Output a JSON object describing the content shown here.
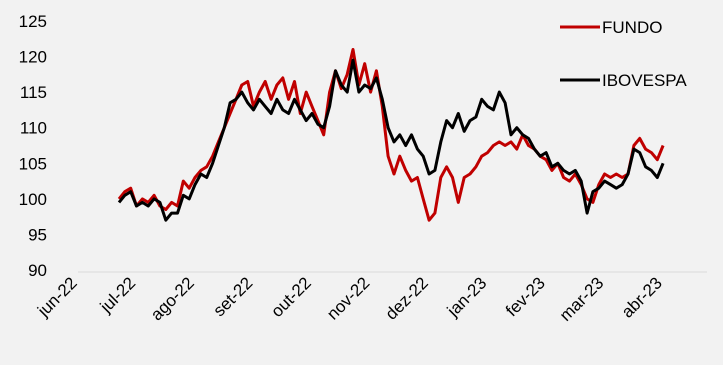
{
  "chart_data": {
    "type": "line",
    "title": "",
    "xlabel": "",
    "ylabel": "",
    "ylim": [
      90,
      125
    ],
    "yticks": [
      "125",
      "120",
      "115",
      "110",
      "105",
      "100",
      "95",
      "90"
    ],
    "xticks": [
      "jun-22",
      "jul-22",
      "ago-22",
      "set-22",
      "out-22",
      "nov-22",
      "dez-22",
      "jan-23",
      "fev-23",
      "mar-23",
      "abr-23"
    ],
    "grid": false,
    "legend_position": "top-right",
    "colors": {
      "FUNDO": "#c00000",
      "IBOVESPA": "#000000"
    },
    "series": [
      {
        "name": "FUNDO",
        "points": [
          [
            0.7,
            100.0
          ],
          [
            0.8,
            101.0
          ],
          [
            0.9,
            101.5
          ],
          [
            1.0,
            99.0
          ],
          [
            1.1,
            100.0
          ],
          [
            1.2,
            99.5
          ],
          [
            1.3,
            100.5
          ],
          [
            1.4,
            99.0
          ],
          [
            1.5,
            98.5
          ],
          [
            1.6,
            99.5
          ],
          [
            1.7,
            99.0
          ],
          [
            1.8,
            102.5
          ],
          [
            1.9,
            101.5
          ],
          [
            2.0,
            103.0
          ],
          [
            2.1,
            104.0
          ],
          [
            2.2,
            104.5
          ],
          [
            2.3,
            106.0
          ],
          [
            2.4,
            108.0
          ],
          [
            2.5,
            110.0
          ],
          [
            2.6,
            112.0
          ],
          [
            2.7,
            114.0
          ],
          [
            2.8,
            116.0
          ],
          [
            2.9,
            116.5
          ],
          [
            3.0,
            113.0
          ],
          [
            3.1,
            115.0
          ],
          [
            3.2,
            116.5
          ],
          [
            3.3,
            114.0
          ],
          [
            3.4,
            116.0
          ],
          [
            3.5,
            117.0
          ],
          [
            3.6,
            114.0
          ],
          [
            3.7,
            116.5
          ],
          [
            3.8,
            112.0
          ],
          [
            3.9,
            115.0
          ],
          [
            4.0,
            113.0
          ],
          [
            4.1,
            111.0
          ],
          [
            4.2,
            109.0
          ],
          [
            4.3,
            115.0
          ],
          [
            4.4,
            118.0
          ],
          [
            4.5,
            115.5
          ],
          [
            4.6,
            117.5
          ],
          [
            4.7,
            121.0
          ],
          [
            4.8,
            116.0
          ],
          [
            4.9,
            119.0
          ],
          [
            5.0,
            115.0
          ],
          [
            5.1,
            118.0
          ],
          [
            5.2,
            113.0
          ],
          [
            5.3,
            106.0
          ],
          [
            5.4,
            103.5
          ],
          [
            5.5,
            106.0
          ],
          [
            5.6,
            104.0
          ],
          [
            5.7,
            102.5
          ],
          [
            5.8,
            103.0
          ],
          [
            5.9,
            100.0
          ],
          [
            6.0,
            97.0
          ],
          [
            6.1,
            98.0
          ],
          [
            6.2,
            103.0
          ],
          [
            6.3,
            104.5
          ],
          [
            6.4,
            103.0
          ],
          [
            6.5,
            99.5
          ],
          [
            6.6,
            103.0
          ],
          [
            6.7,
            103.5
          ],
          [
            6.8,
            104.5
          ],
          [
            6.9,
            106.0
          ],
          [
            7.0,
            106.5
          ],
          [
            7.1,
            107.5
          ],
          [
            7.2,
            108.0
          ],
          [
            7.3,
            107.5
          ],
          [
            7.4,
            108.0
          ],
          [
            7.5,
            107.0
          ],
          [
            7.6,
            109.0
          ],
          [
            7.7,
            107.5
          ],
          [
            7.8,
            107.0
          ],
          [
            7.9,
            106.0
          ],
          [
            8.0,
            105.5
          ],
          [
            8.1,
            104.0
          ],
          [
            8.2,
            105.0
          ],
          [
            8.3,
            103.0
          ],
          [
            8.4,
            102.5
          ],
          [
            8.5,
            103.5
          ],
          [
            8.6,
            102.0
          ],
          [
            8.7,
            100.0
          ],
          [
            8.8,
            99.5
          ],
          [
            8.9,
            102.0
          ],
          [
            9.0,
            103.5
          ],
          [
            9.1,
            103.0
          ],
          [
            9.2,
            103.5
          ],
          [
            9.3,
            103.0
          ],
          [
            9.4,
            103.5
          ],
          [
            9.5,
            107.5
          ],
          [
            9.6,
            108.5
          ],
          [
            9.7,
            107.0
          ],
          [
            9.8,
            106.5
          ],
          [
            9.9,
            105.5
          ],
          [
            10.0,
            107.5
          ]
        ]
      },
      {
        "name": "IBOVESPA",
        "points": [
          [
            0.7,
            99.5
          ],
          [
            0.8,
            100.5
          ],
          [
            0.9,
            101.0
          ],
          [
            1.0,
            99.0
          ],
          [
            1.1,
            99.5
          ],
          [
            1.2,
            99.0
          ],
          [
            1.3,
            100.0
          ],
          [
            1.4,
            99.5
          ],
          [
            1.5,
            97.0
          ],
          [
            1.6,
            98.0
          ],
          [
            1.7,
            98.0
          ],
          [
            1.8,
            100.5
          ],
          [
            1.9,
            100.0
          ],
          [
            2.0,
            102.0
          ],
          [
            2.1,
            103.5
          ],
          [
            2.2,
            103.0
          ],
          [
            2.3,
            105.0
          ],
          [
            2.4,
            107.5
          ],
          [
            2.5,
            110.0
          ],
          [
            2.6,
            113.5
          ],
          [
            2.7,
            114.0
          ],
          [
            2.8,
            115.0
          ],
          [
            2.9,
            113.5
          ],
          [
            3.0,
            112.5
          ],
          [
            3.1,
            114.0
          ],
          [
            3.2,
            113.0
          ],
          [
            3.3,
            112.0
          ],
          [
            3.4,
            114.0
          ],
          [
            3.5,
            112.5
          ],
          [
            3.6,
            112.0
          ],
          [
            3.7,
            114.0
          ],
          [
            3.8,
            112.5
          ],
          [
            3.9,
            111.0
          ],
          [
            4.0,
            112.0
          ],
          [
            4.1,
            110.5
          ],
          [
            4.2,
            110.0
          ],
          [
            4.3,
            113.0
          ],
          [
            4.4,
            118.0
          ],
          [
            4.5,
            116.0
          ],
          [
            4.6,
            115.0
          ],
          [
            4.7,
            119.5
          ],
          [
            4.8,
            115.0
          ],
          [
            4.9,
            116.0
          ],
          [
            5.0,
            115.5
          ],
          [
            5.1,
            117.0
          ],
          [
            5.2,
            114.0
          ],
          [
            5.3,
            110.0
          ],
          [
            5.4,
            108.0
          ],
          [
            5.5,
            109.0
          ],
          [
            5.6,
            107.5
          ],
          [
            5.7,
            109.0
          ],
          [
            5.8,
            107.0
          ],
          [
            5.9,
            106.0
          ],
          [
            6.0,
            103.5
          ],
          [
            6.1,
            104.0
          ],
          [
            6.2,
            108.0
          ],
          [
            6.3,
            111.0
          ],
          [
            6.4,
            110.0
          ],
          [
            6.5,
            112.0
          ],
          [
            6.6,
            109.5
          ],
          [
            6.7,
            111.0
          ],
          [
            6.8,
            111.5
          ],
          [
            6.9,
            114.0
          ],
          [
            7.0,
            113.0
          ],
          [
            7.1,
            112.5
          ],
          [
            7.2,
            115.0
          ],
          [
            7.3,
            113.5
          ],
          [
            7.4,
            109.0
          ],
          [
            7.5,
            110.0
          ],
          [
            7.6,
            109.0
          ],
          [
            7.7,
            108.5
          ],
          [
            7.8,
            107.0
          ],
          [
            7.9,
            106.0
          ],
          [
            8.0,
            106.5
          ],
          [
            8.1,
            104.5
          ],
          [
            8.2,
            105.0
          ],
          [
            8.3,
            104.0
          ],
          [
            8.4,
            103.5
          ],
          [
            8.5,
            104.0
          ],
          [
            8.6,
            102.5
          ],
          [
            8.7,
            98.0
          ],
          [
            8.8,
            101.0
          ],
          [
            8.9,
            101.5
          ],
          [
            9.0,
            102.5
          ],
          [
            9.1,
            102.0
          ],
          [
            9.2,
            101.5
          ],
          [
            9.3,
            102.0
          ],
          [
            9.4,
            103.5
          ],
          [
            9.5,
            107.0
          ],
          [
            9.6,
            106.5
          ],
          [
            9.7,
            104.5
          ],
          [
            9.8,
            104.0
          ],
          [
            9.9,
            103.0
          ],
          [
            10.0,
            105.0
          ]
        ]
      }
    ]
  }
}
